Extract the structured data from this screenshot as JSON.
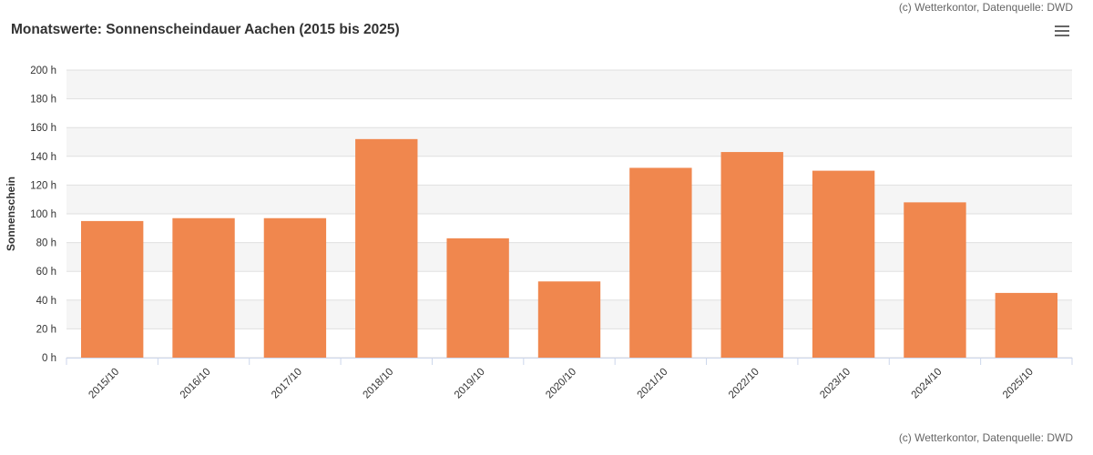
{
  "credit_top": "(c) Wetterkontor, Datenquelle: DWD",
  "chart_data": {
    "type": "bar",
    "title": "Monatswerte: Sonnenscheindauer Aachen (2015 bis 2025)",
    "ylabel": "Sonnenschein",
    "xlabel": "",
    "categories": [
      "2015/10",
      "2016/10",
      "2017/10",
      "2018/10",
      "2019/10",
      "2020/10",
      "2021/10",
      "2022/10",
      "2023/10",
      "2024/10",
      "2025/10"
    ],
    "values": [
      95,
      97,
      97,
      152,
      83,
      53,
      132,
      143,
      130,
      108,
      45
    ],
    "ylim": [
      0,
      200
    ],
    "yticks": [
      "0 h",
      "20 h",
      "40 h",
      "60 h",
      "80 h",
      "100 h",
      "120 h",
      "140 h",
      "160 h",
      "180 h",
      "200 h"
    ],
    "grid": true,
    "bar_color": "#f0874e",
    "alternate_band_color": "#f5f5f5"
  },
  "credit": "(c) Wetterkontor, Datenquelle: DWD",
  "menu_icon": "hamburger-menu-icon"
}
